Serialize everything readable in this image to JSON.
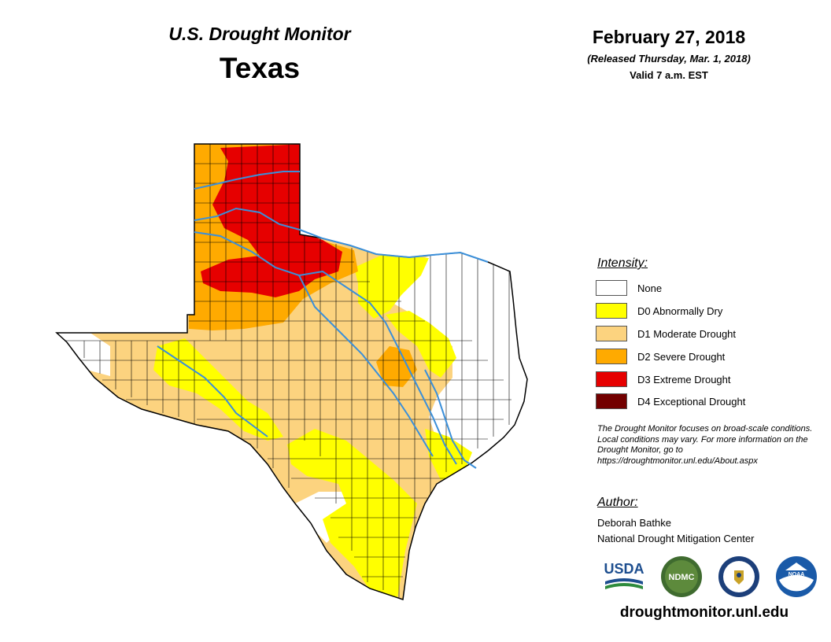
{
  "header": {
    "title": "U.S. Drought Monitor",
    "state": "Texas",
    "date": "February 27, 2018",
    "released": "(Released Thursday, Mar. 1, 2018)",
    "valid": "Valid 7 a.m. EST"
  },
  "legend": {
    "title": "Intensity:",
    "items": [
      {
        "code": "none",
        "label": "None",
        "color": "#ffffff"
      },
      {
        "code": "D0",
        "label": "D0 Abnormally Dry",
        "color": "#ffff00"
      },
      {
        "code": "D1",
        "label": "D1 Moderate Drought",
        "color": "#fcd37f"
      },
      {
        "code": "D2",
        "label": "D2 Severe Drought",
        "color": "#ffaa00"
      },
      {
        "code": "D3",
        "label": "D3 Extreme Drought",
        "color": "#e60000"
      },
      {
        "code": "D4",
        "label": "D4 Exceptional Drought",
        "color": "#730000"
      }
    ]
  },
  "note": {
    "text": "The Drought Monitor focuses on broad-scale conditions. Local conditions may vary. For more information on the Drought Monitor, go to https://droughtmonitor.unl.edu/About.aspx"
  },
  "author": {
    "title": "Author:",
    "name": "Deborah Bathke",
    "org": "National Drought Mitigation Center"
  },
  "logos": {
    "usda": "USDA",
    "ndmc": "NDMC",
    "noaa": "NOAA"
  },
  "footer": {
    "site": "droughtmonitor.unl.edu"
  },
  "colors": {
    "river": "#3b8fd9",
    "county_line": "#000000"
  }
}
